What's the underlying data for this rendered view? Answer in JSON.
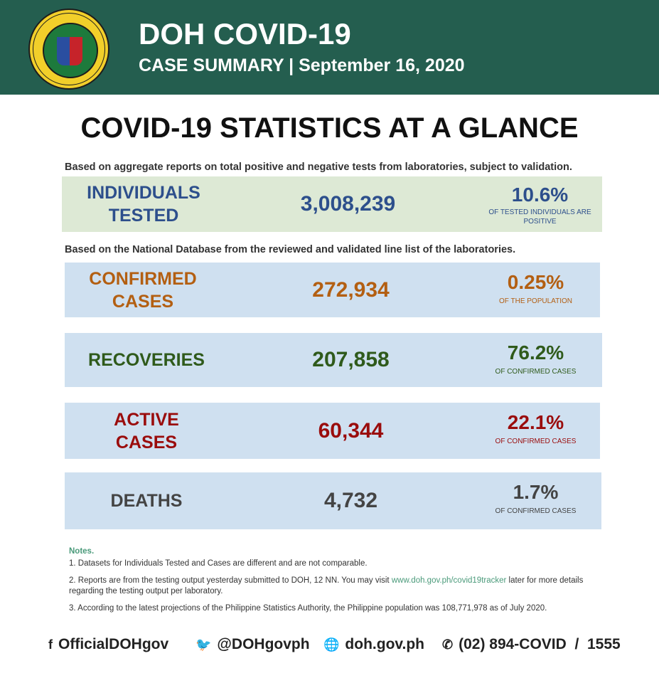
{
  "header": {
    "title": "DOH COVID-19",
    "subtitle": "CASE SUMMARY | September 16, 2020",
    "seal_text": "REPUBLIC OF THE PHILIPPINES DEPARTMENT OF HEALTH"
  },
  "main_title": "COVID-19 STATISTICS AT A GLANCE",
  "sub1": "Based on aggregate reports on total positive and negative tests from laboratories, subject to validation.",
  "sub2": "Based on the National Database from the reviewed and validated line list of the laboratories.",
  "tested": {
    "label1": "INDIVIDUALS",
    "label2": "TESTED",
    "value": "3,008,239",
    "pct": "10.6%",
    "pct_note": "OF TESTED INDIVIDUALS ARE POSITIVE"
  },
  "confirmed": {
    "label1": "CONFIRMED",
    "label2": "CASES",
    "value": "272,934",
    "pct": "0.25%",
    "pct_note": "OF THE POPULATION"
  },
  "recoveries": {
    "label": "RECOVERIES",
    "value": "207,858",
    "pct": "76.2%",
    "pct_note": "OF CONFIRMED CASES"
  },
  "active": {
    "label1": "ACTIVE",
    "label2": "CASES",
    "value": "60,344",
    "pct": "22.1%",
    "pct_note": "OF CONFIRMED CASES"
  },
  "deaths": {
    "label": "DEATHS",
    "value": "4,732",
    "pct": "1.7%",
    "pct_note": "OF CONFIRMED CASES"
  },
  "notes": {
    "title": "Notes.",
    "n1": "1. Datasets for Individuals Tested and Cases are different and are not comparable.",
    "n2a": "2.  Reports are from the testing output yesterday submitted to DOH, 12 NN. You may visit ",
    "n2link": "www.doh.gov.ph/covid19tracker",
    "n2b": " later for more details regarding the testing output per laboratory.",
    "n3": "3. According to the latest projections of the Philippine Statistics Authority, the Philippine population was 108,771,978 as of July 2020."
  },
  "footer": {
    "facebook": "OfficialDOHgov",
    "twitter": "@DOHgovph",
    "web": "doh.gov.ph",
    "phone": "(02) 894-COVID  /  1555"
  },
  "colors": {
    "header": "#245e4f",
    "tested": "#2d4f8c",
    "confirmed": "#b35f12",
    "recoveries": "#2f5a1b",
    "active": "#9a0c0c",
    "deaths": "#444444"
  }
}
